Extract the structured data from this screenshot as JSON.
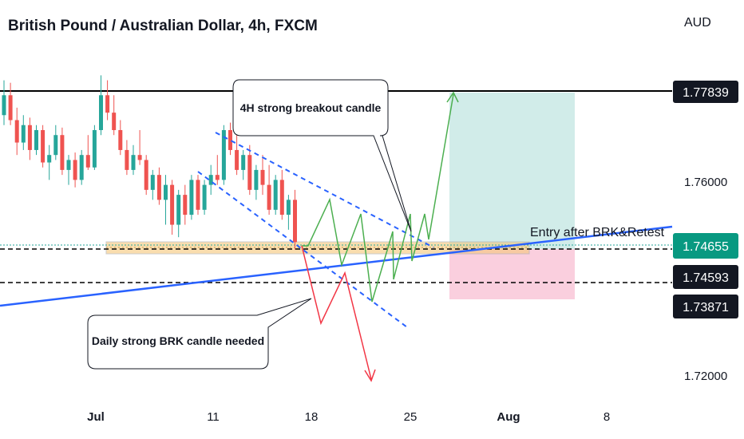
{
  "header": {
    "title": "British Pound / Australian Dollar, 4h, FXCM",
    "currency": "AUD"
  },
  "chart_data": {
    "type": "candlestick",
    "title": "British Pound / Australian Dollar, 4h, FXCM",
    "ylabel": "AUD",
    "ylim": [
      1.715,
      1.7855
    ],
    "x_ticks": [
      "Jul",
      "11",
      "18",
      "25",
      "Aug",
      "8"
    ],
    "y_ticks": [
      "1.76000",
      "1.72000"
    ],
    "price_labels": [
      {
        "text": "1.77839",
        "value": 1.77839,
        "style": "dark"
      },
      {
        "text": "1.74655",
        "value": 1.74655,
        "style": "green"
      },
      {
        "text": "1.74593",
        "value": 1.74593,
        "style": "dark"
      },
      {
        "text": "1.73871",
        "value": 1.73871,
        "style": "dark"
      }
    ],
    "annotations": [
      {
        "text": "4H strong breakout candle"
      },
      {
        "text": "Daily strong BRK candle needed"
      },
      {
        "text": "Entry after BRK&Retest"
      }
    ],
    "colors": {
      "up": "#26a69a",
      "down": "#ef5350",
      "trendline": "#2962ff",
      "zone": "#f6c87a",
      "target": "#b2dfdb",
      "stop": "#f8bbd0",
      "green_path": "#4caf50",
      "red_path": "#f23645",
      "entry_label": "#089981"
    },
    "candles": [
      [
        1.772,
        1.779,
        1.77,
        1.776
      ],
      [
        1.776,
        1.7785,
        1.77,
        1.771
      ],
      [
        1.771,
        1.7735,
        1.764,
        1.7665
      ],
      [
        1.7665,
        1.772,
        1.765,
        1.77
      ],
      [
        1.77,
        1.7715,
        1.763,
        1.765
      ],
      [
        1.765,
        1.77,
        1.764,
        1.769
      ],
      [
        1.769,
        1.77,
        1.7615,
        1.7625
      ],
      [
        1.7625,
        1.766,
        1.759,
        1.764
      ],
      [
        1.764,
        1.77,
        1.763,
        1.768
      ],
      [
        1.768,
        1.7695,
        1.76,
        1.761
      ],
      [
        1.761,
        1.764,
        1.758,
        1.763
      ],
      [
        1.763,
        1.7645,
        1.7575,
        1.759
      ],
      [
        1.759,
        1.765,
        1.758,
        1.764
      ],
      [
        1.764,
        1.768,
        1.761,
        1.7615
      ],
      [
        1.7615,
        1.77,
        1.761,
        1.769
      ],
      [
        1.769,
        1.78,
        1.768,
        1.776
      ],
      [
        1.776,
        1.779,
        1.771,
        1.7725
      ],
      [
        1.7725,
        1.776,
        1.768,
        1.769
      ],
      [
        1.769,
        1.771,
        1.764,
        1.765
      ],
      [
        1.765,
        1.767,
        1.76,
        1.761
      ],
      [
        1.761,
        1.766,
        1.76,
        1.764
      ],
      [
        1.764,
        1.769,
        1.762,
        1.763
      ],
      [
        1.763,
        1.764,
        1.756,
        1.757
      ],
      [
        1.757,
        1.761,
        1.755,
        1.76
      ],
      [
        1.76,
        1.7615,
        1.754,
        1.755
      ],
      [
        1.755,
        1.76,
        1.75,
        1.758
      ],
      [
        1.758,
        1.759,
        1.748,
        1.75
      ],
      [
        1.75,
        1.757,
        1.7475,
        1.756
      ],
      [
        1.756,
        1.758,
        1.75,
        1.752
      ],
      [
        1.752,
        1.76,
        1.751,
        1.759
      ],
      [
        1.759,
        1.76,
        1.752,
        1.753
      ],
      [
        1.753,
        1.759,
        1.752,
        1.758
      ],
      [
        1.758,
        1.762,
        1.756,
        1.76
      ],
      [
        1.76,
        1.764,
        1.758,
        1.759
      ],
      [
        1.759,
        1.77,
        1.758,
        1.769
      ],
      [
        1.769,
        1.7705,
        1.764,
        1.765
      ],
      [
        1.765,
        1.768,
        1.76,
        1.761
      ],
      [
        1.761,
        1.765,
        1.759,
        1.764
      ],
      [
        1.764,
        1.766,
        1.756,
        1.757
      ],
      [
        1.757,
        1.762,
        1.755,
        1.761
      ],
      [
        1.761,
        1.764,
        1.756,
        1.758
      ],
      [
        1.758,
        1.762,
        1.752,
        1.753
      ],
      [
        1.753,
        1.76,
        1.752,
        1.759
      ],
      [
        1.759,
        1.761,
        1.751,
        1.752
      ],
      [
        1.752,
        1.756,
        1.749,
        1.755
      ],
      [
        1.755,
        1.757,
        1.745,
        1.7465
      ]
    ]
  }
}
